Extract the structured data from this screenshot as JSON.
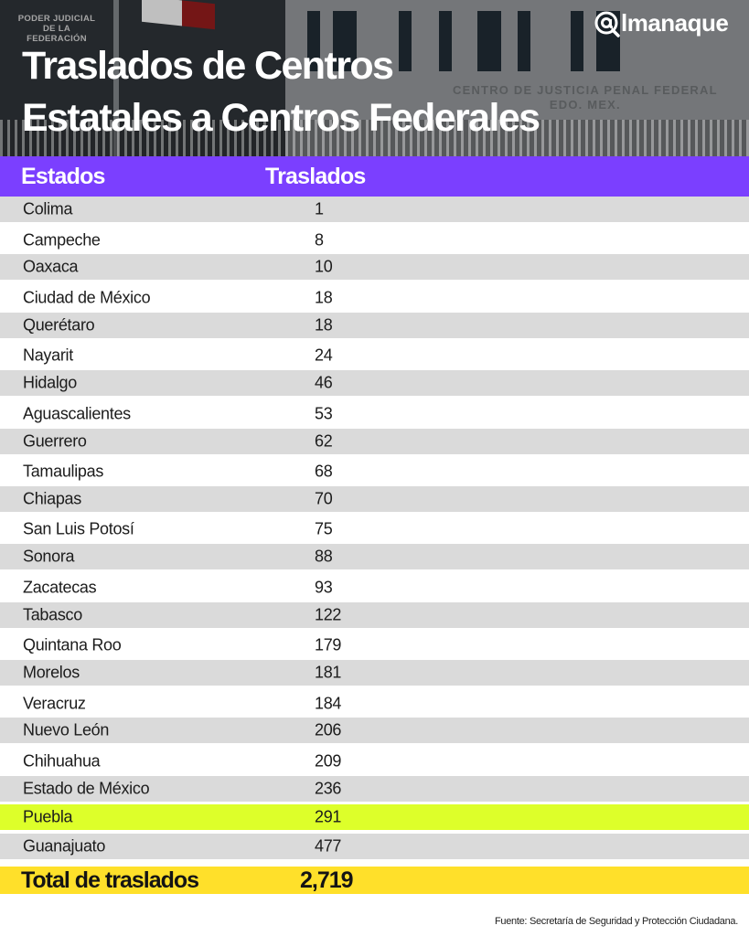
{
  "header": {
    "title_line1": "Traslados de Centros",
    "title_line2": "Estatales a Centros Federales",
    "brand": "lmanaque",
    "brand_icon": "at-magnifier-icon",
    "background_sign_left": [
      "PODER JUDICIAL",
      "DE LA",
      "FEDERACIÓN"
    ],
    "background_sign_right": [
      "CENTRO DE JUSTICIA PENAL FEDERAL",
      "EDO. MEX."
    ]
  },
  "colors": {
    "header_bar": "#7B3FFF",
    "row_grey": "#DADADA",
    "highlight_row": "#DDFF2A",
    "total_row": "#FFE02A"
  },
  "table": {
    "columns": [
      "Estados",
      "Traslados"
    ],
    "rows": [
      {
        "state": "Colima",
        "value": "1"
      },
      {
        "state": "Campeche",
        "value": "8"
      },
      {
        "state": "Oaxaca",
        "value": "10"
      },
      {
        "state": "Ciudad de México",
        "value": "18"
      },
      {
        "state": "Querétaro",
        "value": "18"
      },
      {
        "state": "Nayarit",
        "value": "24"
      },
      {
        "state": "Hidalgo",
        "value": "46"
      },
      {
        "state": "Aguascalientes",
        "value": "53"
      },
      {
        "state": "Guerrero",
        "value": "62"
      },
      {
        "state": "Tamaulipas",
        "value": "68"
      },
      {
        "state": "Chiapas",
        "value": "70"
      },
      {
        "state": "San Luis Potosí",
        "value": "75"
      },
      {
        "state": "Sonora",
        "value": "88"
      },
      {
        "state": "Zacatecas",
        "value": "93"
      },
      {
        "state": "Tabasco",
        "value": "122"
      },
      {
        "state": "Quintana Roo",
        "value": "179"
      },
      {
        "state": "Morelos",
        "value": "181"
      },
      {
        "state": "Veracruz",
        "value": "184"
      },
      {
        "state": "Nuevo León",
        "value": "206"
      },
      {
        "state": "Chihuahua",
        "value": "209"
      },
      {
        "state": "Estado de México",
        "value": "236"
      },
      {
        "state": "Puebla",
        "value": "291",
        "highlight": true
      },
      {
        "state": "Guanajuato",
        "value": "477"
      }
    ],
    "total": {
      "label": "Total de traslados",
      "value": "2,719"
    }
  },
  "footer": {
    "source": "Fuente: Secretaría de Seguridad y Protección Ciudadana."
  }
}
